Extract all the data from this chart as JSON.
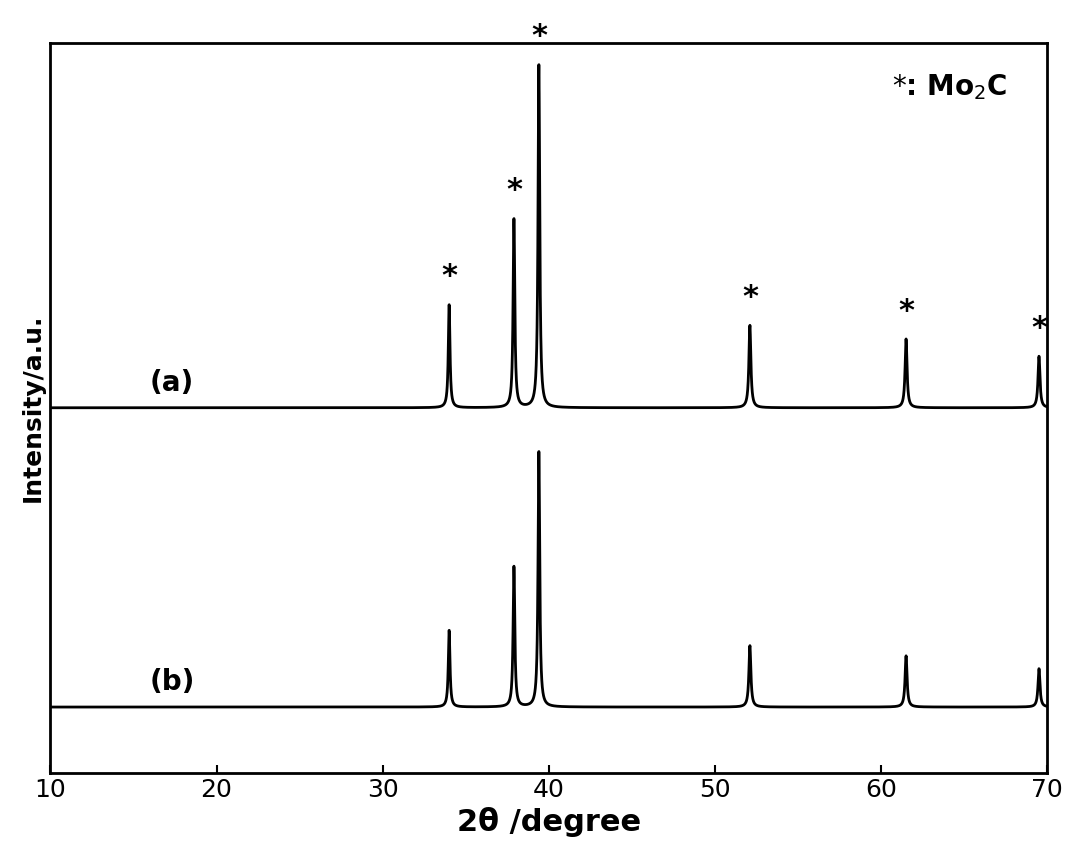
{
  "xlabel": "2θ /degree",
  "ylabel": "Intensity/a.u.",
  "xlim": [
    10,
    70
  ],
  "ylim": [
    0,
    1.0
  ],
  "x_ticks": [
    10,
    20,
    30,
    40,
    50,
    60,
    70
  ],
  "background_color": "#ffffff",
  "line_color": "#000000",
  "legend_text": "*: Mo$_2$C",
  "label_a": "(a)",
  "label_b": "(b)",
  "peaks_positions": [
    34.0,
    37.9,
    39.4,
    52.1,
    61.5,
    69.5
  ],
  "peaks_heights_a": [
    0.3,
    0.55,
    1.0,
    0.24,
    0.2,
    0.15
  ],
  "peaks_heights_b": [
    0.3,
    0.55,
    1.0,
    0.24,
    0.2,
    0.15
  ],
  "peaks_widths": [
    0.12,
    0.12,
    0.12,
    0.14,
    0.14,
    0.14
  ],
  "baseline_a": 0.5,
  "baseline_b": 0.09,
  "scale_a": 0.47,
  "scale_b": 0.35,
  "xlabel_fontsize": 22,
  "ylabel_fontsize": 18,
  "tick_fontsize": 18,
  "annotation_fontsize": 22,
  "legend_fontsize": 20,
  "label_fontsize": 20,
  "line_width": 2.0
}
